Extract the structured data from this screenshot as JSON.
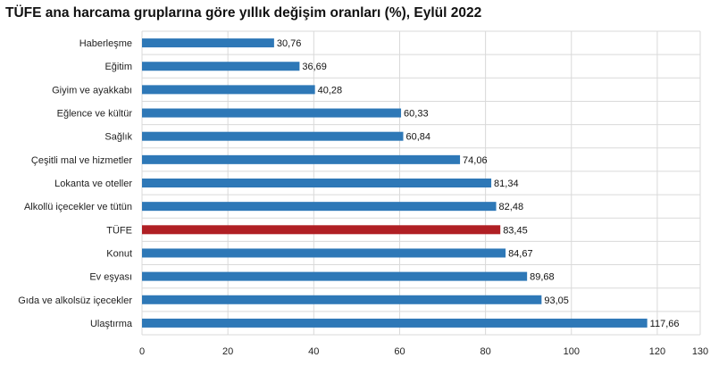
{
  "chart_data": {
    "type": "bar",
    "orientation": "horizontal",
    "title": "TÜFE ana harcama gruplarına göre yıllık değişim oranları (%), Eylül 2022",
    "categories": [
      "Haberleşme",
      "Eğitim",
      "Giyim ve ayakkabı",
      "Eğlence ve kültür",
      "Sağlık",
      "Çeşitli mal ve hizmetler",
      "Lokanta ve oteller",
      "Alkollü içecekler ve tütün",
      "TÜFE",
      "Konut",
      "Ev eşyası",
      "Gıda ve alkolsüz içecekler",
      "Ulaştırma"
    ],
    "values": [
      30.76,
      36.69,
      40.28,
      60.33,
      60.84,
      74.06,
      81.34,
      82.48,
      83.45,
      84.67,
      89.68,
      93.05,
      117.66
    ],
    "value_labels": [
      "30,76",
      "36,69",
      "40,28",
      "60,33",
      "60,84",
      "74,06",
      "81,34",
      "82,48",
      "83,45",
      "84,67",
      "89,68",
      "93,05",
      "117,66"
    ],
    "highlight_category": "TÜFE",
    "colors": {
      "bar": "#2e78b7",
      "highlight": "#b01f24",
      "grid": "#d9d9d9"
    },
    "xlim": [
      0,
      130
    ],
    "xticks": [
      0,
      20,
      40,
      60,
      80,
      100,
      120,
      130
    ],
    "xlabel": "",
    "ylabel": "",
    "grid": true,
    "legend": "none"
  }
}
